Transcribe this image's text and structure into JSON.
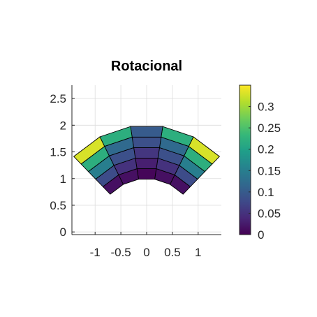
{
  "chart_data": {
    "type": "heatmap",
    "title": "Rotacional",
    "xlabel": "",
    "ylabel": "",
    "xlim": [
      -1.45,
      1.45
    ],
    "ylim": [
      -0.05,
      2.75
    ],
    "x_ticks": [
      -1,
      -0.5,
      0,
      0.5,
      1
    ],
    "x_tick_labels": [
      "-1",
      "-0.5",
      "0",
      "0.5",
      "1"
    ],
    "y_ticks": [
      0,
      0.5,
      1,
      1.5,
      2,
      2.5
    ],
    "y_tick_labels": [
      "0",
      "0.5",
      "1",
      "1.5",
      "2",
      "2.5"
    ],
    "grid": true,
    "mesh": {
      "center": [
        0,
        0
      ],
      "radii": [
        1.0,
        1.2,
        1.4,
        1.6,
        1.8,
        2.0
      ],
      "angles_deg": [
        45,
        63,
        81,
        99,
        117,
        135
      ],
      "values": [
        [
          0.015,
          0.015,
          0.005,
          0.015,
          0.015
        ],
        [
          0.08,
          0.05,
          0.03,
          0.05,
          0.08
        ],
        [
          0.15,
          0.085,
          0.055,
          0.085,
          0.15
        ],
        [
          0.22,
          0.12,
          0.085,
          0.12,
          0.22
        ],
        [
          0.33,
          0.22,
          0.1,
          0.22,
          0.33
        ]
      ]
    },
    "colorbar": {
      "colormap": "viridis",
      "range": [
        0,
        0.35
      ],
      "ticks": [
        0,
        0.05,
        0.1,
        0.15,
        0.2,
        0.25,
        0.3
      ],
      "tick_labels": [
        "0",
        "0.05",
        "0.1",
        "0.15",
        "0.2",
        "0.25",
        "0.3"
      ]
    }
  }
}
